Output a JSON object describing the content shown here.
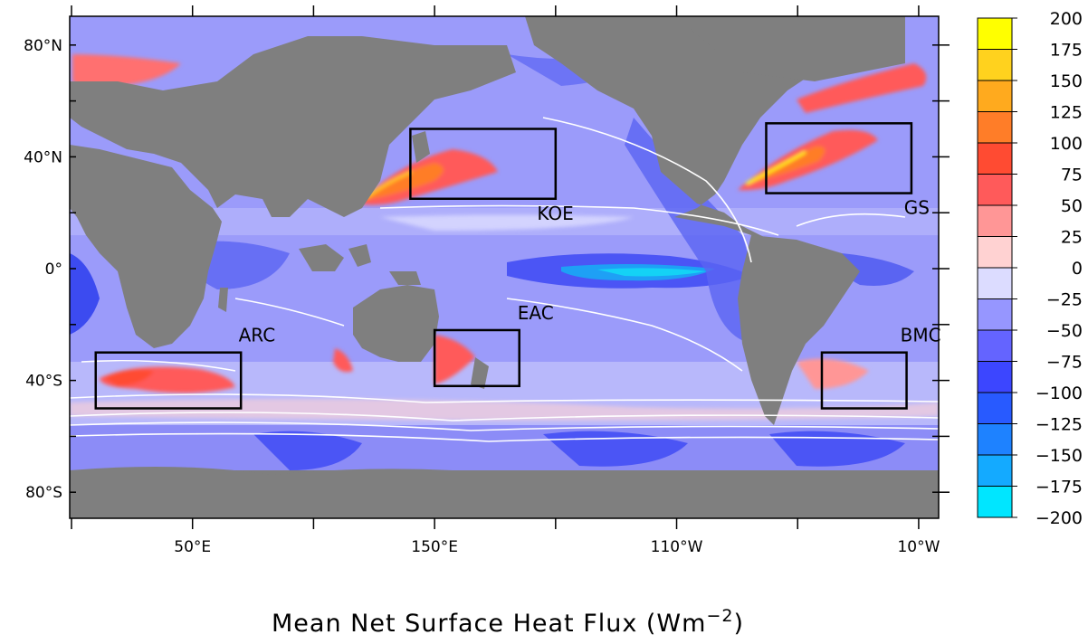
{
  "title": {
    "main": "Mean Net Surface Heat Flux (Wm",
    "exp": "−2",
    "close": ")"
  },
  "lat_labels": [
    {
      "text": "80°N",
      "lat": 80
    },
    {
      "text": "40°N",
      "lat": 40
    },
    {
      "text": "0°",
      "lat": 0
    },
    {
      "text": "40°S",
      "lat": -40
    },
    {
      "text": "80°S",
      "lat": -80
    }
  ],
  "lon_labels": [
    {
      "text": "50°E",
      "lon": 50
    },
    {
      "text": "150°E",
      "lon": 150
    },
    {
      "text": "110°W",
      "lon": 250
    },
    {
      "text": "10°W",
      "lon": 350
    }
  ],
  "regions": [
    {
      "name": "KOE",
      "lon": [
        140,
        200
      ],
      "lat": [
        25,
        50
      ]
    },
    {
      "name": "GS",
      "lon": [
        287,
        347
      ],
      "lat": [
        27,
        52
      ]
    },
    {
      "name": "EAC",
      "lon": [
        150,
        185
      ],
      "lat": [
        -42,
        -22
      ]
    },
    {
      "name": "ARC",
      "lon": [
        10,
        70
      ],
      "lat": [
        -50,
        -30
      ]
    },
    {
      "name": "BMC",
      "lon": [
        310,
        345
      ],
      "lat": [
        -50,
        -30
      ]
    }
  ],
  "colorbar": {
    "unit": "Wm-2",
    "ticks": [
      "200",
      "175",
      "150",
      "125",
      "100",
      "75",
      "50",
      "25",
      "0",
      "−25",
      "−50",
      "−75",
      "−100",
      "−125",
      "−150",
      "−175",
      "−200"
    ],
    "colors": [
      "#ffff00",
      "#ffd21e",
      "#ffaa1e",
      "#ff7d28",
      "#ff4b32",
      "#ff5a5a",
      "#ff9696",
      "#ffd2d2",
      "#dcdcff",
      "#9696ff",
      "#6464ff",
      "#3c46ff",
      "#285aff",
      "#1e82ff",
      "#14aaff",
      "#00e6ff"
    ]
  }
}
